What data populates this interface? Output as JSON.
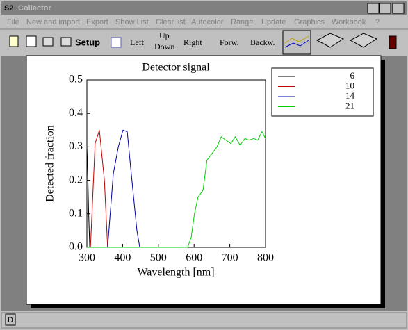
{
  "window": {
    "title": "Collector",
    "menu": [
      "File",
      "New and import",
      "Export",
      "Show List",
      "Clear list",
      "Autocolor",
      "Range",
      "Update",
      "Graphics",
      "Workbook",
      "?"
    ],
    "toolbar": {
      "setup": "Setup",
      "left": "Left",
      "up": "Up",
      "down": "Down",
      "right": "Right",
      "forward": "Forw.",
      "backward": "Backw."
    },
    "status": "D"
  },
  "chart_data": {
    "type": "line",
    "title": "Detector signal",
    "x_label": "Wavelength [nm]",
    "y_label": "Detected fraction",
    "xlim": [
      300,
      800
    ],
    "ylim": [
      0,
      0.5
    ],
    "xticks": [
      300,
      400,
      500,
      600,
      700,
      800
    ],
    "yticks": [
      {
        "value": 0,
        "label": "0.0"
      },
      0.1,
      0.2,
      0.3,
      0.4,
      0.5
    ],
    "grid": false,
    "legend": "upper right",
    "series": [
      {
        "name": "6",
        "color": "#000000",
        "x": [
          300,
          302,
          305,
          308
        ],
        "values": [
          0.3,
          0.24,
          0.1,
          0
        ]
      },
      {
        "name": "10",
        "color": "#c00000",
        "x": [
          310,
          323,
          335,
          349,
          358
        ],
        "values": [
          0,
          0.31,
          0.35,
          0.2,
          0
        ]
      },
      {
        "name": "14",
        "color": "#0000a0",
        "x": [
          358,
          374,
          388,
          401,
          413,
          426,
          440,
          448
        ],
        "values": [
          0,
          0.22,
          0.3,
          0.35,
          0.345,
          0.2,
          0.05,
          0
        ]
      },
      {
        "name": "21",
        "color": "#00d000",
        "x": [
          300,
          582,
          592,
          601,
          611,
          625,
          636,
          650,
          664,
          676,
          689,
          703,
          715,
          729,
          742,
          754,
          767,
          778,
          790,
          800
        ],
        "values": [
          0,
          0,
          0.03,
          0.1,
          0.15,
          0.17,
          0.26,
          0.28,
          0.3,
          0.33,
          0.32,
          0.31,
          0.33,
          0.305,
          0.325,
          0.32,
          0.325,
          0.32,
          0.345,
          0.325
        ]
      }
    ]
  }
}
